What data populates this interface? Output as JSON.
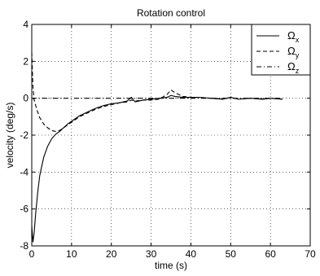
{
  "chart_data": {
    "type": "line",
    "title": "Rotation control",
    "xlabel": "time (s)",
    "ylabel": "velocity (deg/s)",
    "xlim": [
      0,
      70
    ],
    "ylim": [
      -8,
      4
    ],
    "xticks": [
      0,
      10,
      20,
      30,
      40,
      50,
      60,
      70
    ],
    "yticks": [
      -8,
      -6,
      -4,
      -2,
      0,
      2,
      4
    ],
    "x_tick_labels": [
      "0",
      "10",
      "20",
      "30",
      "40",
      "50",
      "60",
      "70"
    ],
    "y_tick_labels": [
      "-8",
      "-6",
      "-4",
      "-2",
      "0",
      "2",
      "4"
    ],
    "grid": true,
    "legend_position": "top-right",
    "series": [
      {
        "name": "Ωx",
        "symbol": "Ω",
        "subscript": "x",
        "style": "solid",
        "color": "#000000",
        "x": [
          0,
          0.3,
          0.6,
          1,
          1.5,
          2,
          3,
          4,
          5,
          6,
          7,
          8,
          9,
          10,
          12,
          14,
          16,
          18,
          20,
          22,
          24,
          25,
          26,
          28,
          30,
          32,
          34,
          35,
          36,
          38,
          40,
          42,
          45,
          48,
          50,
          52,
          55,
          58,
          60,
          63
        ],
        "y": [
          -6.9,
          -7.8,
          -7.3,
          -6.2,
          -5.1,
          -4.2,
          -3.2,
          -2.6,
          -2.2,
          -1.95,
          -1.8,
          -1.6,
          -1.4,
          -1.25,
          -0.95,
          -0.75,
          -0.55,
          -0.4,
          -0.3,
          -0.25,
          -0.15,
          0.05,
          -0.2,
          -0.1,
          -0.05,
          0,
          0.05,
          0.15,
          0.1,
          0.05,
          0.05,
          0.05,
          0.0,
          -0.05,
          0.05,
          -0.05,
          0.0,
          -0.05,
          0.0,
          -0.05
        ]
      },
      {
        "name": "Ωy",
        "symbol": "Ω",
        "subscript": "y",
        "style": "dashed",
        "color": "#000000",
        "x": [
          0,
          0.3,
          0.6,
          1,
          1.5,
          2,
          3,
          4,
          5,
          6,
          7,
          8,
          9,
          10,
          12,
          14,
          16,
          18,
          20,
          22,
          24,
          25,
          26,
          28,
          30,
          32,
          34,
          35,
          36,
          38,
          40,
          42,
          45,
          48,
          50,
          52,
          55,
          58,
          60,
          63
        ],
        "y": [
          2.5,
          0.6,
          -0.1,
          -0.4,
          -0.75,
          -1.05,
          -1.4,
          -1.6,
          -1.75,
          -1.8,
          -1.75,
          -1.6,
          -1.45,
          -1.3,
          -1.0,
          -0.8,
          -0.6,
          -0.45,
          -0.35,
          -0.25,
          -0.2,
          -0.1,
          -0.15,
          -0.1,
          -0.1,
          -0.05,
          0.2,
          0.45,
          0.3,
          0.1,
          0.05,
          0.05,
          0.0,
          -0.05,
          0.05,
          -0.05,
          0.0,
          -0.05,
          0.0,
          -0.05
        ]
      },
      {
        "name": "Ωz",
        "symbol": "Ω",
        "subscript": "z",
        "style": "dashdot",
        "color": "#000000",
        "x": [
          0,
          0.5,
          1,
          2,
          5,
          10,
          20,
          30,
          40,
          50,
          60,
          63
        ],
        "y": [
          0.0,
          -0.02,
          0.0,
          0.0,
          0.0,
          0.0,
          0.0,
          0.0,
          0.0,
          0.0,
          0.0,
          0.0
        ]
      }
    ]
  }
}
